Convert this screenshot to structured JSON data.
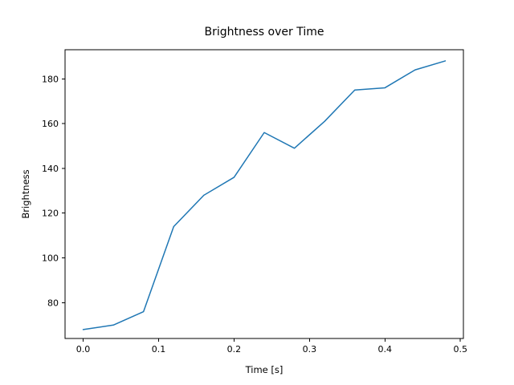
{
  "figure": {
    "background": "#ffffff",
    "axis_color": "#000000",
    "text_color": "#000000"
  },
  "chart_data": {
    "type": "line",
    "title": "Brightness over Time",
    "xlabel": "Time [s]",
    "ylabel": "Brightness",
    "x": [
      0.0,
      0.04,
      0.08,
      0.12,
      0.16,
      0.2,
      0.24,
      0.28,
      0.32,
      0.36,
      0.4,
      0.44,
      0.48
    ],
    "y": [
      68,
      70,
      76,
      114,
      128,
      136,
      156,
      149,
      161,
      175,
      176,
      184,
      188
    ],
    "line_color": "#1f77b4",
    "line_width": 1.5,
    "xlim": [
      -0.024,
      0.504
    ],
    "ylim": [
      64,
      193
    ],
    "xticks": [
      0.0,
      0.1,
      0.2,
      0.3,
      0.4,
      0.5
    ],
    "xtick_labels": [
      "0.0",
      "0.1",
      "0.2",
      "0.3",
      "0.4",
      "0.5"
    ],
    "yticks": [
      80,
      100,
      120,
      140,
      160,
      180
    ],
    "ytick_labels": [
      "80",
      "100",
      "120",
      "140",
      "160",
      "180"
    ],
    "grid": false,
    "legend": "none"
  }
}
